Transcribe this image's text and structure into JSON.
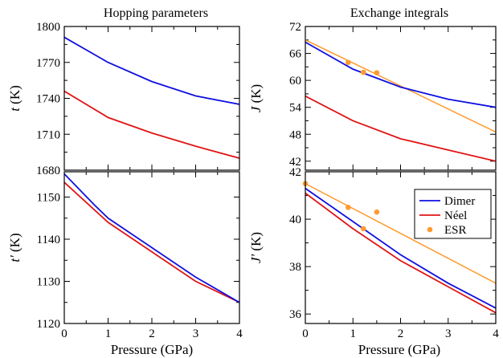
{
  "column_titles": [
    "Hopping parameters",
    "Exchange integrals"
  ],
  "xlabel": "Pressure (GPa)",
  "colors": {
    "dimer": "#1010e0",
    "neel": "#e01414",
    "esr": "#ff9a2e",
    "fit": "#ff9a2e"
  },
  "chart_data": [
    {
      "type": "line",
      "panel": "top-left",
      "ylabel": "t (K)",
      "ylabel_symbol": "t",
      "ylabel_unit": " (K)",
      "xlim": [
        0,
        4
      ],
      "ylim": [
        1680,
        1800
      ],
      "xticks": [
        0,
        1,
        2,
        3,
        4
      ],
      "yticks": [
        1680,
        1710,
        1740,
        1770,
        1800
      ],
      "series": [
        {
          "key": "dimer",
          "x": [
            0,
            1,
            2,
            3,
            4
          ],
          "y": [
            1791,
            1770,
            1754,
            1742,
            1735
          ]
        },
        {
          "key": "neel",
          "x": [
            0,
            1,
            2,
            3,
            4
          ],
          "y": [
            1746,
            1724,
            1711,
            1700,
            1690
          ]
        }
      ]
    },
    {
      "type": "line",
      "panel": "bottom-left",
      "ylabel": "t' (K)",
      "ylabel_symbol": "t'",
      "ylabel_unit": " (K)",
      "xlim": [
        0,
        4
      ],
      "ylim": [
        1120,
        1156
      ],
      "xticks": [
        0,
        1,
        2,
        3,
        4
      ],
      "yticks": [
        1120,
        1130,
        1140,
        1150
      ],
      "series": [
        {
          "key": "dimer",
          "x": [
            0,
            0.7,
            1,
            2,
            3,
            4
          ],
          "y": [
            1155.5,
            1148,
            1145,
            1138,
            1131,
            1125
          ]
        },
        {
          "key": "neel",
          "x": [
            0,
            1,
            2,
            3,
            4
          ],
          "y": [
            1153.5,
            1144,
            1137,
            1130,
            1125
          ]
        }
      ]
    },
    {
      "type": "line",
      "panel": "top-right",
      "ylabel": "J (K)",
      "ylabel_symbol": "J",
      "ylabel_unit": " (K)",
      "xlim": [
        0,
        4
      ],
      "ylim": [
        40,
        72
      ],
      "xticks": [
        0,
        1,
        2,
        3,
        4
      ],
      "yticks": [
        42,
        48,
        54,
        60,
        66,
        72
      ],
      "series": [
        {
          "key": "dimer",
          "x": [
            0,
            1,
            2,
            3,
            4
          ],
          "y": [
            68.5,
            62.5,
            58.5,
            55.8,
            54.0
          ]
        },
        {
          "key": "neel",
          "x": [
            0,
            1,
            2,
            3,
            4
          ],
          "y": [
            56.5,
            51.0,
            47.0,
            44.5,
            42.0
          ]
        },
        {
          "key": "fit",
          "x": [
            0,
            4
          ],
          "y": [
            69.0,
            48.5
          ]
        }
      ],
      "points": {
        "key": "esr",
        "x": [
          0.9,
          1.22,
          1.5
        ],
        "y": [
          64.0,
          61.8,
          61.7
        ]
      }
    },
    {
      "type": "line",
      "panel": "bottom-right",
      "ylabel": "J' (K)",
      "ylabel_symbol": "J'",
      "ylabel_unit": " (K)",
      "xlim": [
        0,
        4
      ],
      "ylim": [
        35.6,
        42.0
      ],
      "xticks": [
        0,
        1,
        2,
        3,
        4
      ],
      "yticks": [
        36,
        38,
        40,
        42
      ],
      "legend": {
        "placement": "top-right",
        "entries": [
          "Dimer",
          "Néel",
          "ESR"
        ]
      },
      "series": [
        {
          "key": "dimer",
          "name": "Dimer",
          "x": [
            0,
            1,
            2,
            3,
            4
          ],
          "y": [
            41.3,
            39.9,
            38.5,
            37.3,
            36.25
          ]
        },
        {
          "key": "neel",
          "name": "Néel",
          "x": [
            0,
            1,
            2,
            3,
            4
          ],
          "y": [
            41.1,
            39.6,
            38.25,
            37.15,
            36.05
          ]
        },
        {
          "key": "fit",
          "x": [
            0,
            4
          ],
          "y": [
            41.5,
            37.3
          ]
        }
      ],
      "points": {
        "key": "esr",
        "name": "ESR",
        "x": [
          0,
          0.9,
          1.22,
          1.5
        ],
        "y": [
          41.5,
          40.5,
          39.6,
          40.3
        ]
      }
    }
  ]
}
